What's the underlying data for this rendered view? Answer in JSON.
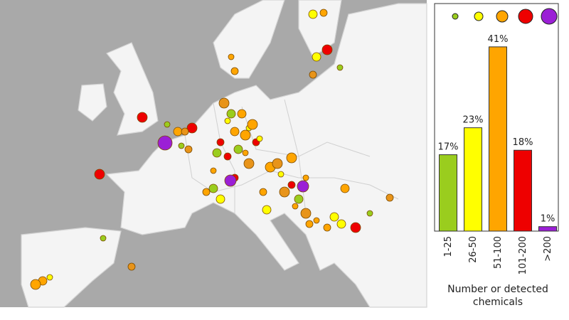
{
  "chart_data": {
    "type": "bar",
    "categories": [
      "1-25",
      "26-50",
      "51-100",
      "101-200",
      ">200"
    ],
    "values": [
      17,
      23,
      41,
      18,
      1
    ],
    "value_labels": [
      "17%",
      "23%",
      "41%",
      "18%",
      "1%"
    ],
    "colors": [
      "#9acd1e",
      "#ffff00",
      "#ffa500",
      "#ee0000",
      "#9b1fd6"
    ],
    "ylim": [
      0,
      50
    ],
    "xlabel": "Number or detected chemicals"
  }
}
